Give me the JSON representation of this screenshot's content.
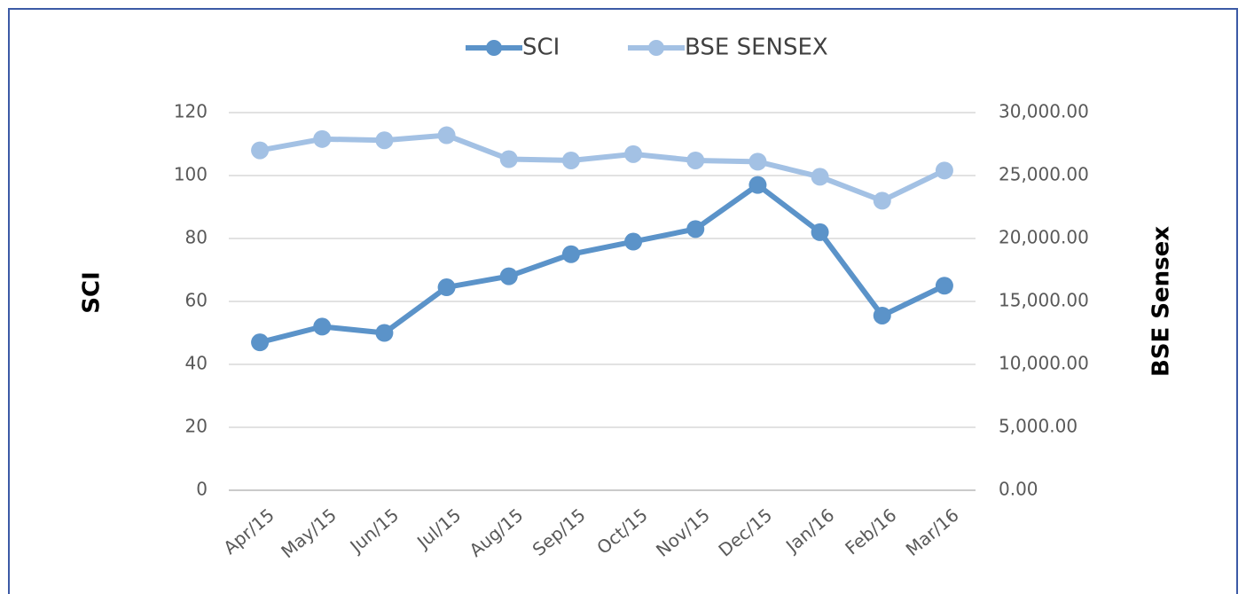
{
  "chart_data": {
    "type": "line",
    "categories": [
      "Apr/15",
      "May/15",
      "Jun/15",
      "Jul/15",
      "Aug/15",
      "Sep/15",
      "Oct/15",
      "Nov/15",
      "Dec/15",
      "Jan/16",
      "Feb/16",
      "Mar/16"
    ],
    "series": [
      {
        "name": "SCI",
        "color": "#5b93c9",
        "values": [
          47,
          52,
          50,
          64.5,
          68,
          75,
          79,
          83,
          97,
          82,
          55.5,
          65
        ]
      },
      {
        "name": "BSE SENSEX",
        "color": "#a3c1e4",
        "axis": "y2",
        "values": [
          27000,
          27900,
          27800,
          28200,
          26300,
          26200,
          26700,
          26200,
          26100,
          24900,
          23000,
          25400
        ]
      }
    ],
    "ylabel": "SCI",
    "y2label": "BSE Sensex",
    "ylim": [
      0,
      120
    ],
    "yticks": [
      0,
      20,
      40,
      60,
      80,
      100,
      120
    ],
    "y2lim": [
      0,
      30000
    ],
    "y2ticks": [
      {
        "value": 0,
        "label": "0.00"
      },
      {
        "value": 5000,
        "label": "5,000.00"
      },
      {
        "value": 10000,
        "label": "10,000.00"
      },
      {
        "value": 15000,
        "label": "15,000.00"
      },
      {
        "value": 20000,
        "label": "20,000.00"
      },
      {
        "value": 25000,
        "label": "25,000.00"
      },
      {
        "value": 30000,
        "label": "30,000.00"
      }
    ],
    "grid": true,
    "legend": "top"
  }
}
